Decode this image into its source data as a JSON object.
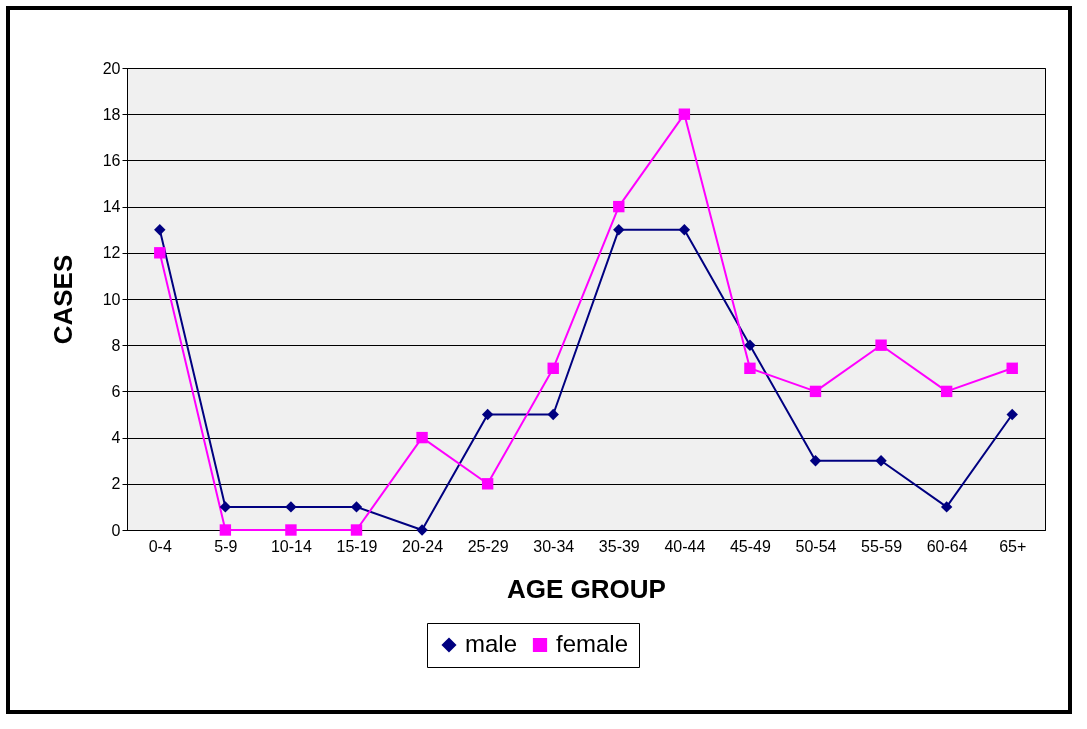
{
  "chart_data": {
    "type": "line",
    "xlabel": "AGE GROUP",
    "ylabel": "CASES",
    "categories": [
      "0-4",
      "5-9",
      "10-14",
      "15-19",
      "20-24",
      "25-29",
      "30-34",
      "35-39",
      "40-44",
      "45-49",
      "50-54",
      "55-59",
      "60-64",
      "65+"
    ],
    "series": [
      {
        "name": "male",
        "color": "#000080",
        "marker": "diamond",
        "values": [
          13,
          1,
          1,
          1,
          0,
          5,
          5,
          13,
          13,
          8,
          3,
          3,
          1,
          5
        ]
      },
      {
        "name": "female",
        "color": "#ff00ff",
        "marker": "square",
        "values": [
          12,
          0,
          0,
          0,
          4,
          2,
          7,
          14,
          18,
          7,
          6,
          8,
          6,
          7
        ]
      }
    ],
    "ylim": [
      0,
      20
    ],
    "yticks": [
      0,
      2,
      4,
      6,
      8,
      10,
      12,
      14,
      16,
      18,
      20
    ],
    "grid": "y",
    "legend": "bottom",
    "line_style": "solid"
  }
}
